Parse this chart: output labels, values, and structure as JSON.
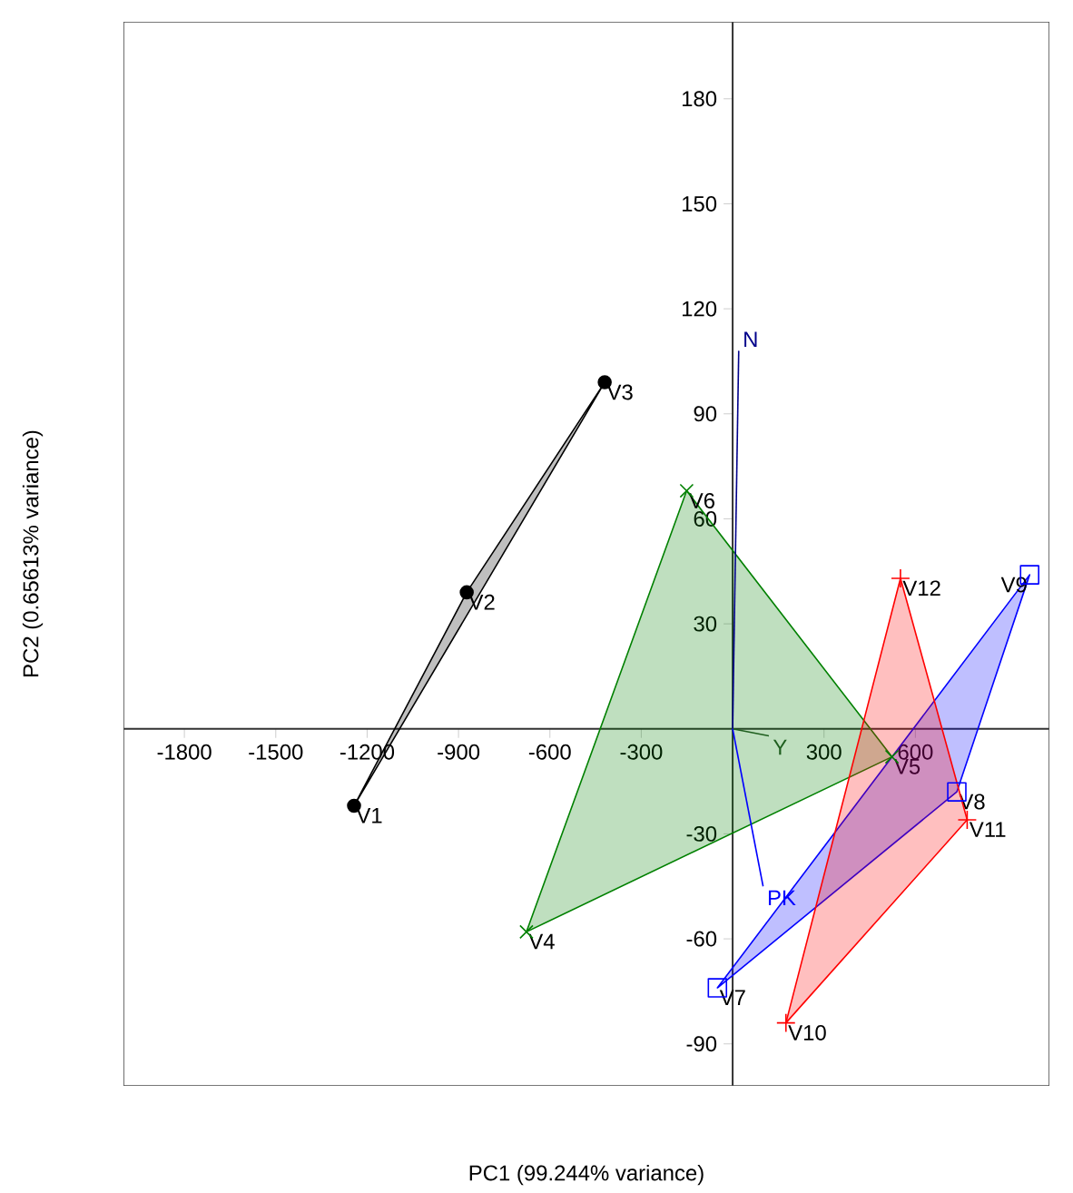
{
  "chart_data": {
    "type": "area",
    "xlabel": "PC1 (99.244% variance)",
    "ylabel": "PC2 (0.65613% variance)",
    "xlim": [
      -2000,
      1040
    ],
    "ylim": [
      -102,
      202
    ],
    "xticks": [
      -1800,
      -1500,
      -1200,
      -900,
      -600,
      -300,
      300,
      600
    ],
    "yticks": [
      -90,
      -60,
      -30,
      30,
      60,
      90,
      120,
      150,
      180
    ],
    "grid": false,
    "legend": false,
    "series": [
      {
        "color": "#000000",
        "marker": "circle",
        "x": [
          -1243,
          -873,
          -420
        ],
        "values": [
          -22,
          39,
          99
        ],
        "value_labels": [
          "V1",
          "V2",
          "V3"
        ]
      },
      {
        "color": "#008000",
        "marker": "cross",
        "x": [
          -677,
          523,
          -151
        ],
        "values": [
          -58,
          -8,
          68
        ],
        "value_labels": [
          "V4",
          "V5",
          "V6"
        ]
      },
      {
        "color": "#0000ff",
        "marker": "square",
        "x": [
          -50,
          736,
          975
        ],
        "values": [
          -74,
          -18,
          44
        ],
        "value_labels": [
          "V7",
          "V8",
          "V9"
        ]
      },
      {
        "color": "#ff0000",
        "marker": "plus",
        "x": [
          175,
          770,
          551
        ],
        "values": [
          -84,
          -26,
          43
        ],
        "value_labels": [
          "V10",
          "V11",
          "V12"
        ]
      },
      {
        "type": "line",
        "name": "N",
        "color": "#00008b",
        "x": [
          0,
          20
        ],
        "values": [
          0,
          108
        ]
      },
      {
        "type": "line",
        "name": "Y",
        "color": "#1f5f1f",
        "x": [
          0,
          119
        ],
        "values": [
          0,
          -2
        ]
      },
      {
        "type": "line",
        "name": "PK",
        "color": "#0000ff",
        "x": [
          0,
          100
        ],
        "values": [
          0,
          -45
        ]
      }
    ]
  }
}
